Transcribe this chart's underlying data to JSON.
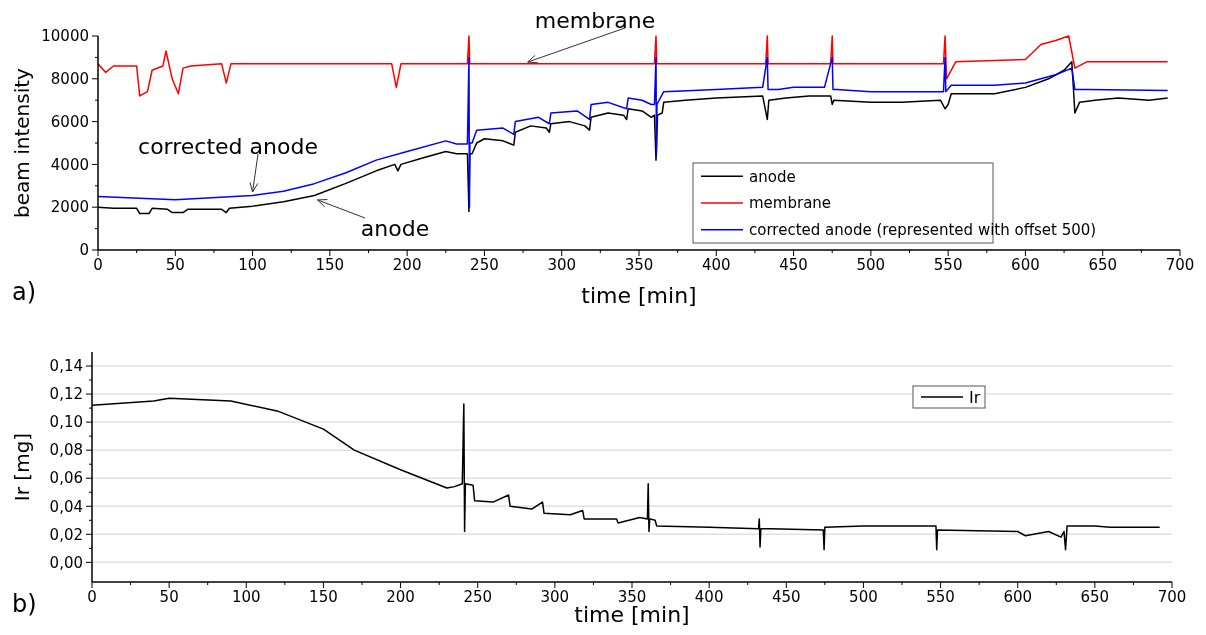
{
  "chart_data": [
    {
      "type": "line",
      "xlabel": "time [min]",
      "ylabel": "beam intensity",
      "xlim": [
        0,
        700
      ],
      "xticks": [
        0,
        50,
        100,
        150,
        200,
        250,
        300,
        350,
        400,
        450,
        500,
        550,
        600,
        650,
        700
      ],
      "ylim": [
        0,
        10000
      ],
      "yticks": [
        0,
        2000,
        4000,
        6000,
        8000,
        10000
      ],
      "grid": false,
      "legend": "bottom right",
      "line_style": "solid",
      "series": [
        {
          "name": "anode",
          "color": "#000000",
          "x": [
            0,
            10,
            25,
            27,
            33,
            35,
            45,
            48,
            55,
            58,
            80,
            83,
            85,
            100,
            120,
            140,
            160,
            180,
            192,
            194,
            196,
            210,
            225,
            232,
            239,
            240,
            240.5,
            242,
            245,
            250,
            262,
            269,
            270,
            280,
            290,
            292,
            293,
            305,
            315,
            318,
            319,
            330,
            340,
            342,
            343,
            352,
            358,
            360,
            361,
            362,
            365,
            366,
            380,
            400,
            430,
            433,
            434,
            445,
            460,
            474,
            475,
            476,
            500,
            520,
            545,
            548,
            550,
            552,
            580,
            600,
            615,
            625,
            630,
            632,
            635,
            645,
            660,
            680,
            692
          ],
          "values": [
            2000,
            1950,
            1950,
            1700,
            1700,
            1950,
            1900,
            1750,
            1750,
            1900,
            1900,
            1750,
            1950,
            2050,
            2250,
            2550,
            3100,
            3700,
            4000,
            3700,
            4000,
            4300,
            4600,
            4500,
            4500,
            1800,
            4500,
            4500,
            5000,
            5200,
            5100,
            4900,
            5500,
            5800,
            5700,
            5500,
            5900,
            6000,
            5800,
            5600,
            6200,
            6400,
            6300,
            6100,
            6600,
            6500,
            6200,
            6300,
            4200,
            6300,
            6400,
            6900,
            7000,
            7100,
            7200,
            6100,
            7000,
            7100,
            7200,
            7200,
            6800,
            7000,
            6900,
            6900,
            7000,
            6600,
            6800,
            7300,
            7300,
            7600,
            8000,
            8400,
            8800,
            6400,
            6900,
            7000,
            7100,
            7000,
            7100
          ]
        },
        {
          "name": "membrane",
          "color": "#ff0000",
          "x": [
            0,
            5,
            10,
            25,
            27,
            32,
            35,
            42,
            44,
            48,
            52,
            55,
            60,
            80,
            83,
            86,
            100,
            190,
            193,
            196,
            239,
            240,
            240.5,
            360,
            361,
            361.5,
            432,
            433,
            433.5,
            474,
            475,
            475.5,
            547,
            548,
            549,
            555,
            600,
            610,
            620,
            628,
            632,
            640,
            692
          ],
          "values": [
            8700,
            8300,
            8600,
            8600,
            7200,
            7400,
            8400,
            8600,
            9300,
            8000,
            7300,
            8500,
            8600,
            8700,
            7800,
            8700,
            8700,
            8700,
            7600,
            8700,
            8700,
            10000,
            8700,
            8700,
            10000,
            8700,
            8700,
            10000,
            8700,
            8700,
            10000,
            8700,
            8700,
            10000,
            8000,
            8800,
            8900,
            9600,
            9800,
            10000,
            8500,
            8800,
            8800
          ]
        },
        {
          "name": "corrected anode (represented with offset 500)",
          "color": "#0000ff",
          "x": [
            0,
            50,
            100,
            120,
            140,
            160,
            180,
            200,
            225,
            232,
            239,
            240,
            240.3,
            240.6,
            242,
            245,
            262,
            269,
            270,
            285,
            292,
            293,
            310,
            318,
            319,
            330,
            342,
            343,
            352,
            358,
            360,
            361,
            361.3,
            361.6,
            366,
            400,
            430,
            433,
            433.5,
            440,
            450,
            470,
            475,
            475.5,
            478,
            500,
            530,
            547,
            548,
            548.5,
            552,
            580,
            600,
            620,
            630,
            632,
            640,
            692
          ],
          "values": [
            2500,
            2350,
            2550,
            2750,
            3100,
            3600,
            4200,
            4600,
            5100,
            4950,
            4950,
            9000,
            2000,
            5000,
            5000,
            5600,
            5700,
            5400,
            6000,
            6200,
            5900,
            6400,
            6500,
            6100,
            6800,
            6900,
            6600,
            7100,
            7000,
            6800,
            6800,
            9000,
            4500,
            6800,
            7400,
            7500,
            7600,
            9000,
            7500,
            7500,
            7600,
            7600,
            9000,
            7500,
            7500,
            7400,
            7400,
            7400,
            9000,
            7400,
            7700,
            7700,
            7800,
            8200,
            8500,
            7500,
            7500,
            7450
          ]
        }
      ],
      "annotations": [
        {
          "text": "membrane",
          "x": 278,
          "y": 8780
        },
        {
          "text": "corrected anode",
          "x": 100,
          "y": 2710
        },
        {
          "text": "anode",
          "x": 142,
          "y": 2340
        },
        "a)"
      ]
    },
    {
      "type": "line",
      "xlabel": "time [min]",
      "ylabel": "Ir [mg]",
      "xlim": [
        0,
        700
      ],
      "xticks": [
        0,
        50,
        100,
        150,
        200,
        250,
        300,
        350,
        400,
        450,
        500,
        550,
        600,
        650,
        700
      ],
      "ylim": [
        -0.014,
        0.15
      ],
      "yticks": [
        {
          "value": 0,
          "label": "0,00"
        },
        {
          "value": 0.02,
          "label": "0,02"
        },
        {
          "value": 0.04,
          "label": "0,04"
        },
        {
          "value": 0.06,
          "label": "0,06"
        },
        {
          "value": 0.08,
          "label": "0,08"
        },
        {
          "value": 0.1,
          "label": "0,10"
        },
        {
          "value": 0.12,
          "label": "0,12"
        },
        {
          "value": 0.14,
          "label": "0,14"
        }
      ],
      "grid": "y",
      "legend": "top right",
      "line_style": "solid",
      "series": [
        {
          "name": "Ir",
          "color": "#000000",
          "x": [
            0,
            40,
            50,
            90,
            120,
            150,
            170,
            200,
            230,
            235,
            240,
            241,
            241.5,
            242,
            247,
            248,
            260,
            270,
            271,
            285,
            292,
            293,
            310,
            318,
            319,
            340,
            341,
            355,
            360,
            360.5,
            361,
            361.5,
            365,
            366,
            400,
            432,
            432.5,
            433,
            433.5,
            440,
            474,
            474.5,
            475,
            500,
            547,
            547.5,
            548,
            600,
            605,
            620,
            628,
            630,
            631,
            632,
            650,
            660,
            692
          ],
          "values": [
            0.112,
            0.115,
            0.117,
            0.115,
            0.108,
            0.095,
            0.08,
            0.066,
            0.053,
            0.054,
            0.056,
            0.113,
            0.022,
            0.056,
            0.055,
            0.044,
            0.043,
            0.048,
            0.04,
            0.038,
            0.043,
            0.035,
            0.034,
            0.037,
            0.031,
            0.031,
            0.028,
            0.032,
            0.031,
            0.056,
            0.022,
            0.031,
            0.03,
            0.026,
            0.025,
            0.024,
            0.031,
            0.011,
            0.024,
            0.024,
            0.023,
            0.009,
            0.025,
            0.026,
            0.026,
            0.009,
            0.023,
            0.022,
            0.019,
            0.022,
            0.018,
            0.022,
            0.009,
            0.026,
            0.026,
            0.025,
            0.025
          ]
        }
      ],
      "annotations": [
        "b)"
      ]
    }
  ]
}
